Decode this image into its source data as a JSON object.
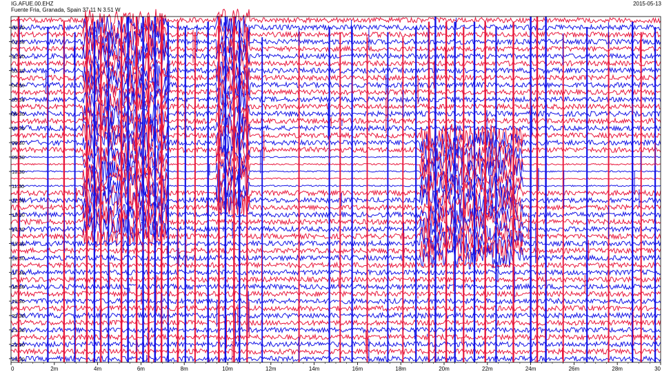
{
  "header": {
    "station": "IG.AFUE.00.EHZ",
    "location": "Fuente Fria, Granada, Spain  37.11 N 3.51 W",
    "date": "2015-05-13"
  },
  "chart_data": {
    "type": "line",
    "subtype": "helicorder",
    "x_unit": "minutes",
    "xlim": [
      0,
      30
    ],
    "x_ticks": [
      0,
      2,
      4,
      6,
      8,
      10,
      12,
      14,
      16,
      18,
      20,
      22,
      24,
      26,
      28,
      30
    ],
    "x_tick_labels": [
      "0",
      "2m",
      "4m",
      "6m",
      "8m",
      "10m",
      "12m",
      "14m",
      "16m",
      "18m",
      "20m",
      "22m",
      "24m",
      "26m",
      "28m",
      "30"
    ],
    "row_labels": [
      "00:30",
      "01:30",
      "02:30",
      "03:30",
      "04:30",
      "05:30",
      "06:30",
      "07:30",
      "08:30",
      "09:30",
      "10:30",
      "11:30",
      "12:30",
      "13:30",
      "14:30",
      "15:30",
      "16:30",
      "17:30",
      "18:30",
      "19:30",
      "20:30",
      "21:30",
      "22:30",
      "23:30"
    ],
    "rows_per_label": 2,
    "trace_count": 48,
    "series_colors": [
      "#e8173c",
      "#1414e6"
    ],
    "grid": false,
    "noise_amplitude": 0.12,
    "quiet_rows": [
      19,
      20,
      21,
      22,
      23
    ],
    "event_columns": [
      {
        "min": 0.35,
        "strength": 1.0
      },
      {
        "min": 1.7,
        "strength": 0.8
      },
      {
        "min": 2.45,
        "strength": 0.9
      },
      {
        "min": 2.95,
        "strength": 0.7
      },
      {
        "min": 3.5,
        "strength": 1.0
      },
      {
        "min": 3.85,
        "strength": 0.9
      },
      {
        "min": 4.15,
        "strength": 0.8
      },
      {
        "min": 4.5,
        "strength": 0.7
      },
      {
        "min": 5.1,
        "strength": 1.0
      },
      {
        "min": 5.4,
        "strength": 1.0
      },
      {
        "min": 5.8,
        "strength": 1.0
      },
      {
        "min": 6.1,
        "strength": 1.0
      },
      {
        "min": 6.35,
        "strength": 1.0
      },
      {
        "min": 6.65,
        "strength": 1.0
      },
      {
        "min": 6.95,
        "strength": 1.0
      },
      {
        "min": 7.25,
        "strength": 0.9
      },
      {
        "min": 7.7,
        "strength": 0.9
      },
      {
        "min": 8.05,
        "strength": 0.8
      },
      {
        "min": 8.5,
        "strength": 0.7
      },
      {
        "min": 9.1,
        "strength": 0.9
      },
      {
        "min": 9.6,
        "strength": 1.0
      },
      {
        "min": 9.9,
        "strength": 1.0
      },
      {
        "min": 10.3,
        "strength": 1.0
      },
      {
        "min": 10.55,
        "strength": 0.9
      },
      {
        "min": 10.9,
        "strength": 0.8
      },
      {
        "min": 11.6,
        "strength": 0.6
      },
      {
        "min": 13.3,
        "strength": 0.7
      },
      {
        "min": 14.7,
        "strength": 0.8
      },
      {
        "min": 15.2,
        "strength": 0.7
      },
      {
        "min": 15.75,
        "strength": 0.8
      },
      {
        "min": 16.45,
        "strength": 0.6
      },
      {
        "min": 17.4,
        "strength": 0.7
      },
      {
        "min": 18.1,
        "strength": 0.6
      },
      {
        "min": 18.7,
        "strength": 0.8
      },
      {
        "min": 19.3,
        "strength": 0.9
      },
      {
        "min": 19.6,
        "strength": 1.0
      },
      {
        "min": 20.1,
        "strength": 0.9
      },
      {
        "min": 20.5,
        "strength": 0.9
      },
      {
        "min": 20.9,
        "strength": 0.8
      },
      {
        "min": 21.4,
        "strength": 0.9
      },
      {
        "min": 21.9,
        "strength": 0.9
      },
      {
        "min": 22.4,
        "strength": 0.8
      },
      {
        "min": 23.2,
        "strength": 0.9
      },
      {
        "min": 24.0,
        "strength": 1.0
      },
      {
        "min": 24.3,
        "strength": 1.0
      },
      {
        "min": 24.7,
        "strength": 1.0
      },
      {
        "min": 25.5,
        "strength": 0.6
      },
      {
        "min": 26.6,
        "strength": 0.8
      },
      {
        "min": 27.6,
        "strength": 0.7
      },
      {
        "min": 28.7,
        "strength": 0.9
      },
      {
        "min": 29.1,
        "strength": 0.7
      },
      {
        "min": 29.75,
        "strength": 0.8
      }
    ],
    "dense_bursts": [
      {
        "from_min": 18.9,
        "to_min": 23.6,
        "from_row": 16,
        "to_row": 33
      },
      {
        "from_min": 3.3,
        "to_min": 7.2,
        "from_row": 0,
        "to_row": 30
      },
      {
        "from_min": 9.5,
        "to_min": 11.0,
        "from_row": 0,
        "to_row": 26
      }
    ]
  }
}
